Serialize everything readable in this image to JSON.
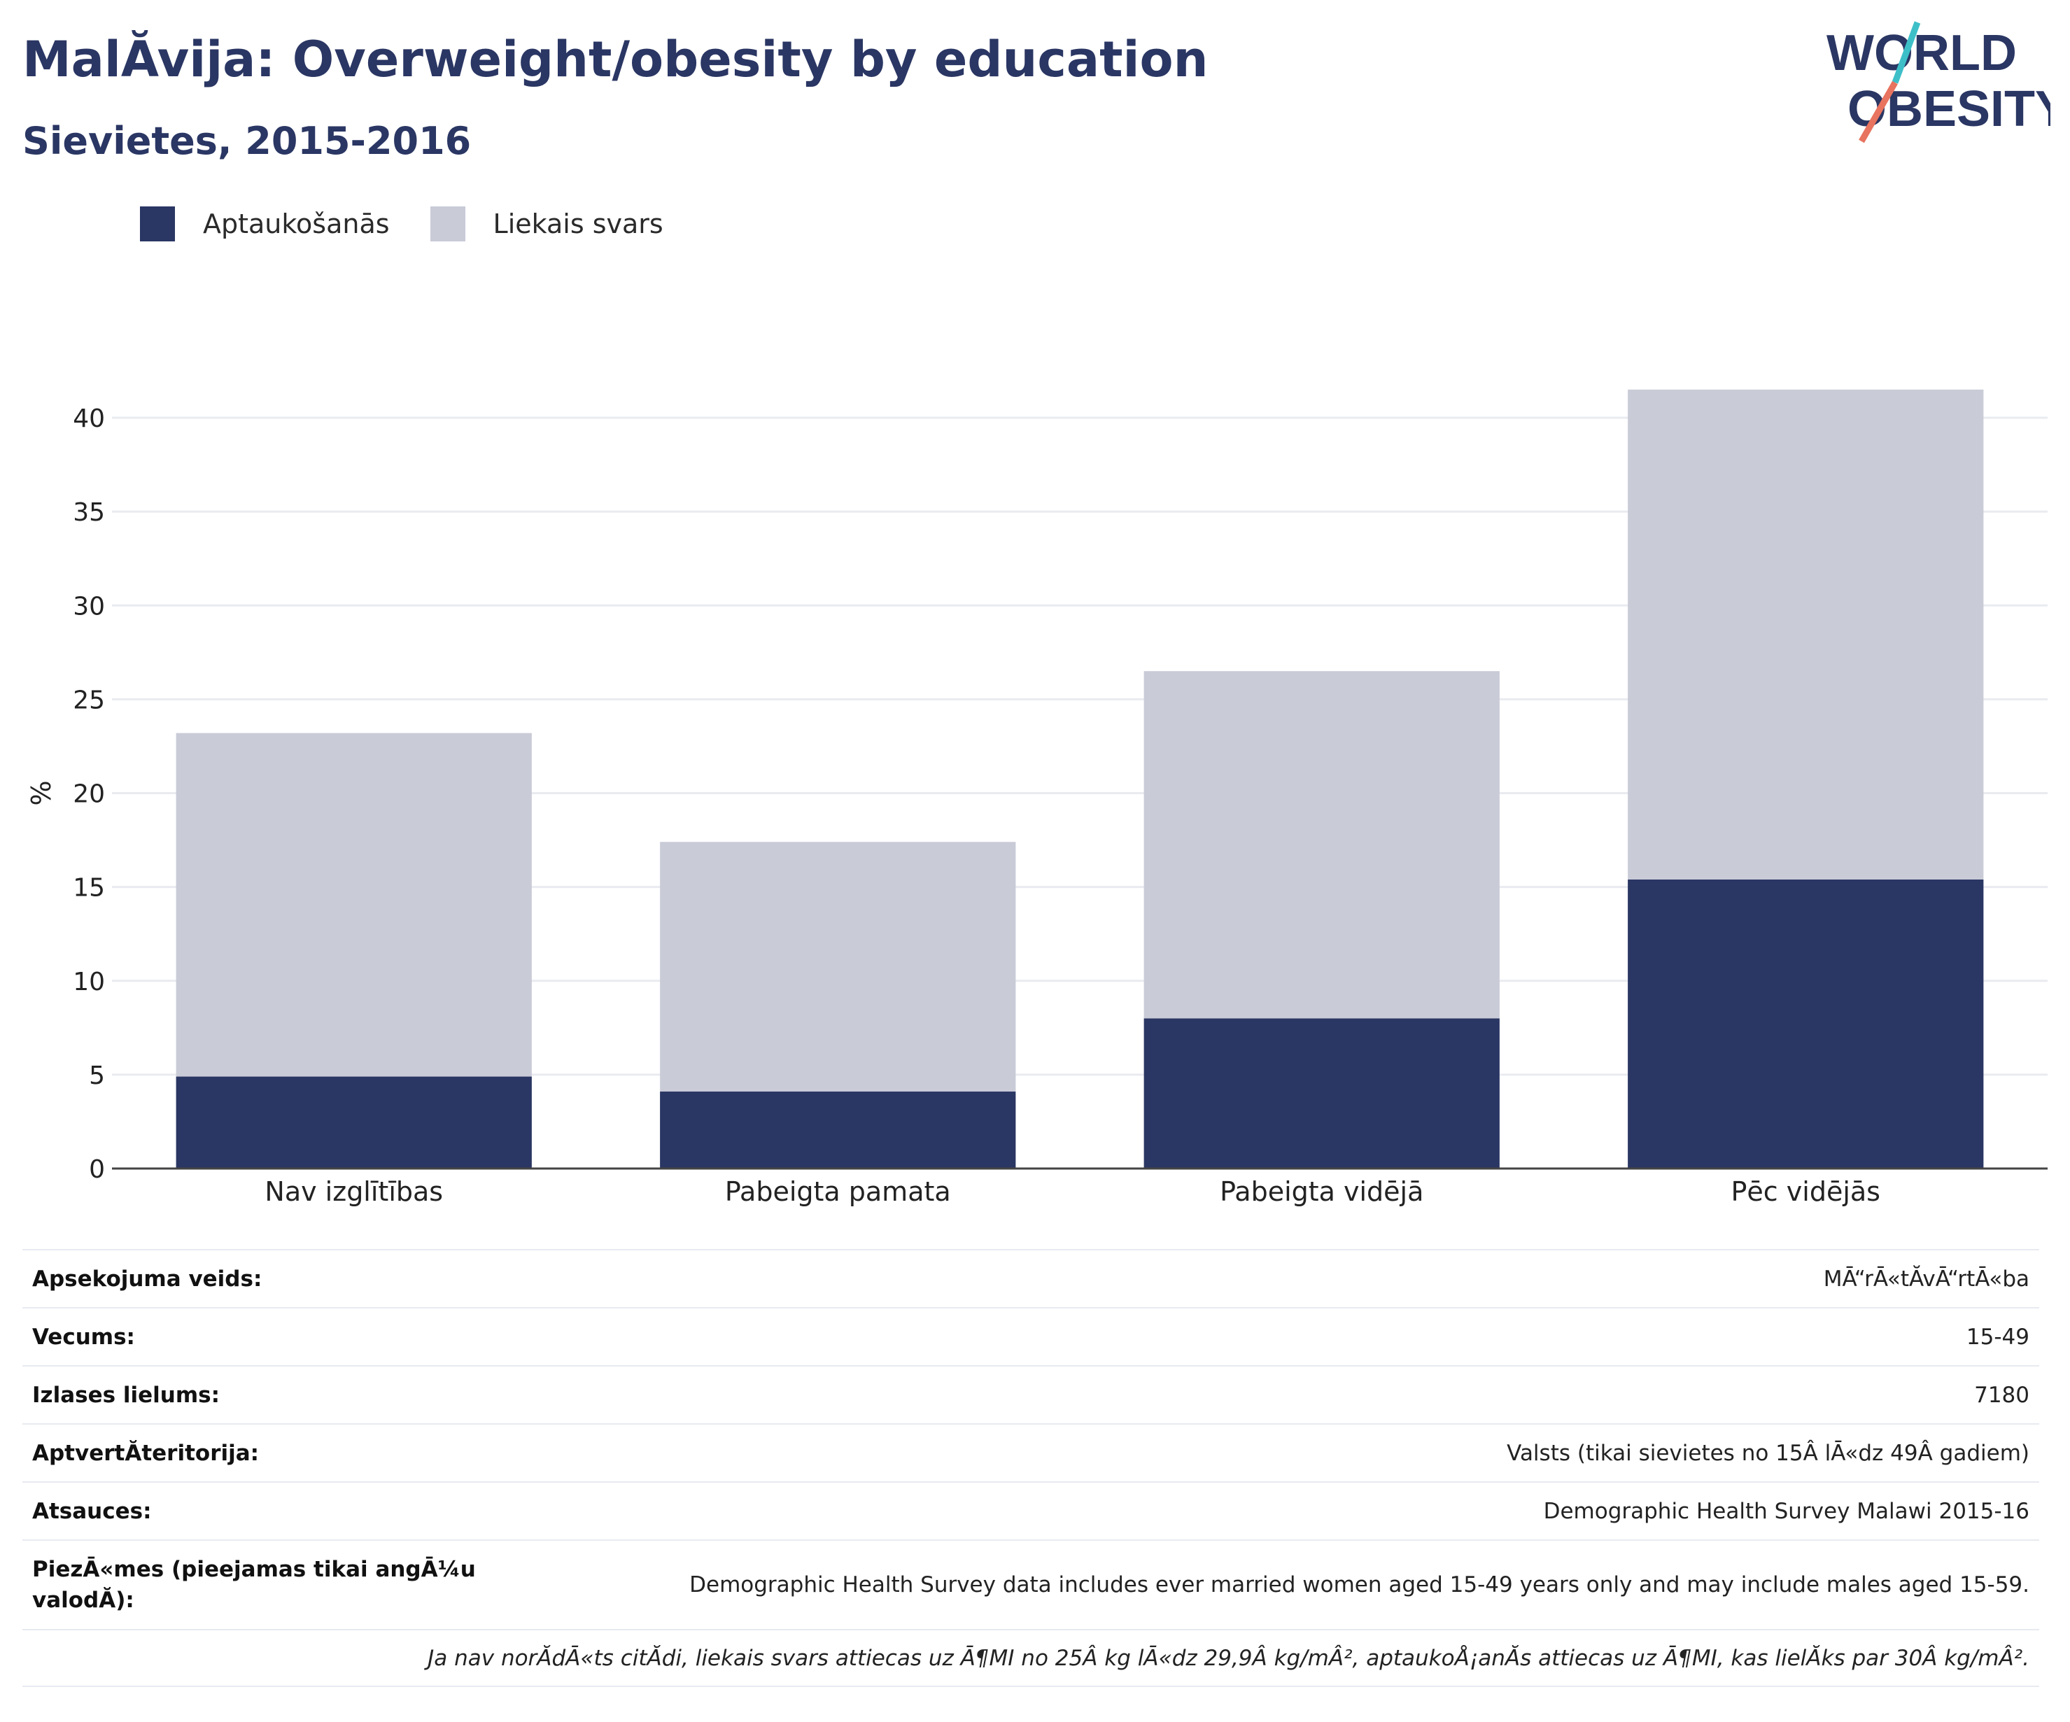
{
  "header": {
    "title": "MalĂvija: Overweight/obesity by education",
    "subtitle": "Sievietes, 2015-2016"
  },
  "logo": {
    "line1": "WORLD",
    "line2": "OBESITY",
    "colors": {
      "text": "#2a3663",
      "slash_top": "#3dbfc8",
      "slash_bottom": "#e8735f"
    }
  },
  "legend": {
    "items": [
      {
        "label": "Aptaukošanās",
        "color": "#2a3663"
      },
      {
        "label": "Liekais svars",
        "color": "#c9cbd7"
      }
    ]
  },
  "chart_data": {
    "type": "bar",
    "stacked": true,
    "categories": [
      "Nav izglītības",
      "Pabeigta pamata",
      "Pabeigta vidējā",
      "Pēc vidējās"
    ],
    "series": [
      {
        "name": "Aptaukošanās",
        "color": "#2a3663",
        "values": [
          4.9,
          4.1,
          8.0,
          15.4
        ]
      },
      {
        "name": "Liekais svars",
        "color": "#c9cbd7",
        "values": [
          18.3,
          13.3,
          18.5,
          26.1
        ]
      }
    ],
    "ylabel": "%",
    "xlabel": "",
    "ylim": [
      0,
      45
    ],
    "yticks": [
      0,
      5,
      10,
      15,
      20,
      25,
      30,
      35,
      40
    ],
    "grid": true,
    "legend_position": "top-left"
  },
  "info": {
    "rows": [
      {
        "label": "Apsekojuma veids:",
        "value": "MĀ“rĀ«tĂvĀ“rtĀ«ba"
      },
      {
        "label": "Vecums:",
        "value": "15-49"
      },
      {
        "label": "Izlases lielums:",
        "value": "7180"
      },
      {
        "label": "AptvertĂteritorija:",
        "value": "Valsts (tikai sievietes no 15Â lĀ«dz 49Â gadiem)"
      },
      {
        "label": "Atsauces:",
        "value": "Demographic Health Survey Malawi 2015-16"
      },
      {
        "label": "PiezĀ«mes (pieejamas tikai angĀ¼u valodĂ):",
        "value": "Demographic Health Survey data includes ever married women aged 15-49 years only and may include males aged 15-59."
      }
    ],
    "footnote": "Ja nav norĂdĀ«ts citĂdi, liekais svars attiecas uz Ā¶MI no 25Â kg lĀ«dz 29,9Â kg/mÂ², aptaukoÅ¡anĂs attiecas uz Ā¶MI, kas lielĂks par 30Â kg/mÂ²."
  }
}
